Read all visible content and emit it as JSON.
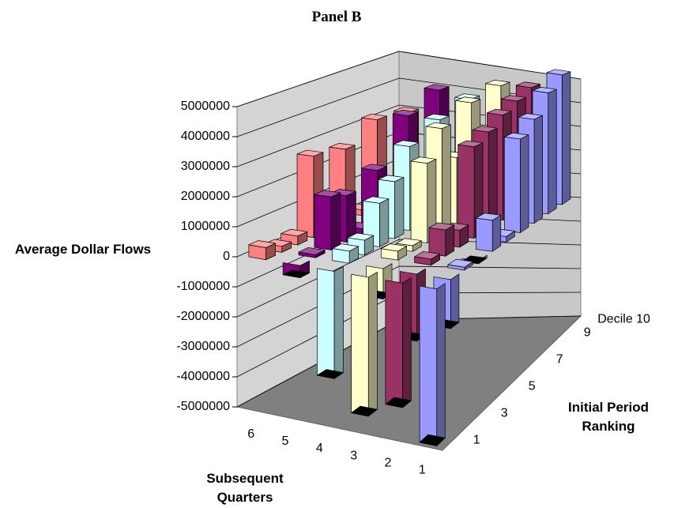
{
  "chart_data": {
    "type": "bar3d",
    "title": "Panel B",
    "y_label": "Average Dollar Flows",
    "x_label": "Subsequent Quarters",
    "depth_label": "Initial Period Ranking",
    "categories": [
      "1",
      null,
      "3",
      null,
      "5",
      null,
      "7",
      null,
      "9",
      "Decile 10"
    ],
    "series": [
      {
        "name": "6",
        "color": "#FF8080",
        "values": [
          400000,
          200000,
          300000,
          2800000,
          150000,
          2600000,
          200000,
          3200000,
          300000,
          3000000
        ]
      },
      {
        "name": "5",
        "color": "#800080",
        "values": [
          -400000,
          100000,
          1800000,
          1600000,
          200000,
          2000000,
          300000,
          3500000,
          500000,
          4000000
        ]
      },
      {
        "name": "4",
        "color": "#CCFFFF",
        "values": [
          -3500000,
          400000,
          500000,
          1500000,
          2000000,
          3000000,
          300000,
          3500000,
          400000,
          3800000
        ]
      },
      {
        "name": "3",
        "color": "#FFFFCC",
        "values": [
          -4500000,
          -1000000,
          300000,
          200000,
          2800000,
          3800000,
          2500000,
          4300000,
          3000000,
          4500000
        ]
      },
      {
        "name": "2",
        "color": "#993366",
        "values": [
          -4000000,
          -2200000,
          200000,
          900000,
          600000,
          3300000,
          3600000,
          4000000,
          4300000,
          4600000
        ]
      },
      {
        "name": "1",
        "color": "#9999FF",
        "values": [
          -5000000,
          -1600000,
          100000,
          -100000,
          1100000,
          200000,
          3500000,
          4000000,
          4800000,
          5300000
        ]
      }
    ],
    "ylim": [
      -5000000,
      5000000
    ],
    "yticks": [
      -5000000,
      -4000000,
      -3000000,
      -2000000,
      -1000000,
      0,
      1000000,
      2000000,
      3000000,
      4000000,
      5000000
    ],
    "grid": true
  }
}
